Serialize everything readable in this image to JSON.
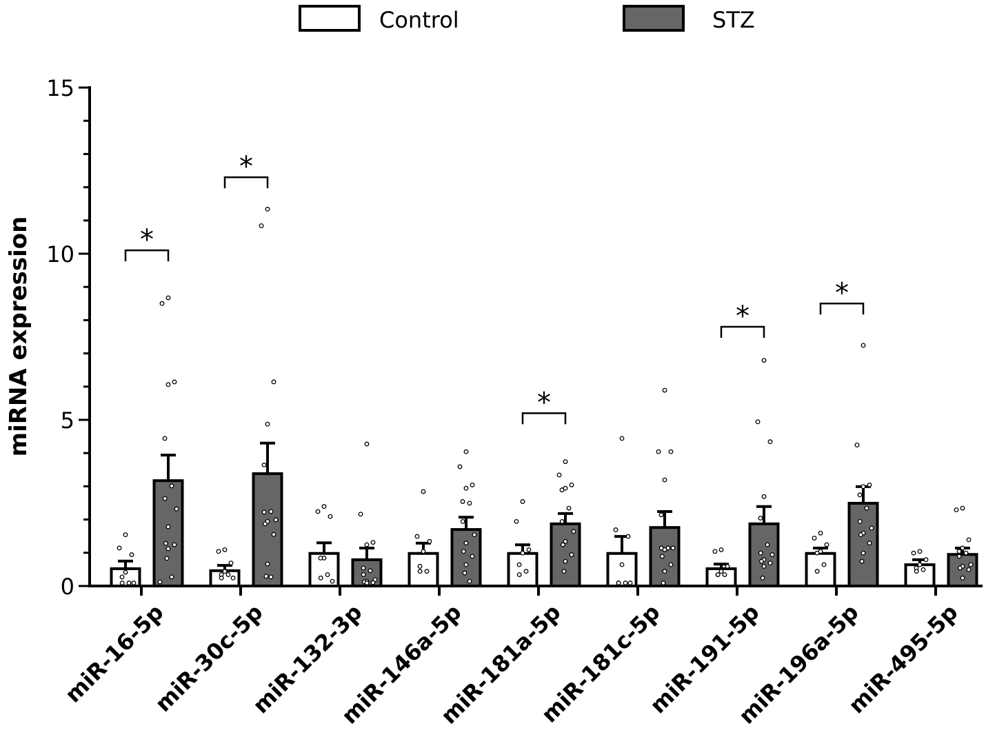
{
  "chart_data": {
    "type": "bar",
    "title": "",
    "xlabel": "",
    "ylabel": "miRNA expression",
    "ylim": [
      0,
      15
    ],
    "yticks": [
      0,
      5,
      10,
      15
    ],
    "ytick_labels": [
      "0",
      "5",
      "10",
      "15"
    ],
    "grid": false,
    "legend_position": "top",
    "categories": [
      "miR-16-5p",
      "miR-30c-5p",
      "miR-132-3p",
      "miR-146a-5p",
      "miR-181a-5p",
      "miR-181c-5p",
      "miR-191-5p",
      "miR-196a-5p",
      "miR-495-5p"
    ],
    "series": [
      {
        "name": "Control",
        "color": "#ffffff",
        "values": [
          0.52,
          0.46,
          0.98,
          0.98,
          0.98,
          0.98,
          0.52,
          0.98,
          0.64
        ],
        "error": [
          0.23,
          0.16,
          0.32,
          0.31,
          0.26,
          0.51,
          0.14,
          0.16,
          0.15
        ],
        "points": [
          [
            1.5,
            1.1,
            0.9,
            0.37,
            0.23,
            0.05,
            0.05,
            0.05
          ],
          [
            1.05,
            1.0,
            0.65,
            0.4,
            0.3,
            0.3,
            0.2,
            0.2
          ],
          [
            2.35,
            2.2,
            2.05,
            0.8,
            0.8,
            0.3,
            0.2,
            0.1
          ],
          [
            2.8,
            1.45,
            1.3,
            1.0,
            0.55,
            0.4,
            0.4
          ],
          [
            2.5,
            1.9,
            1.05,
            0.95,
            0.6,
            0.4,
            0.3
          ],
          [
            4.4,
            1.65,
            1.45,
            0.6,
            0.05,
            0.05,
            0.05,
            0.05
          ],
          [
            1.05,
            1.0,
            0.55,
            0.4,
            0.3,
            0.3,
            0.3
          ],
          [
            1.55,
            1.4,
            1.2,
            1.0,
            0.95,
            0.6,
            0.4
          ],
          [
            1.0,
            0.95,
            0.75,
            0.6,
            0.5,
            0.45,
            0.4
          ]
        ]
      },
      {
        "name": "STZ",
        "color": "#666666",
        "values": [
          3.17,
          3.38,
          0.79,
          1.7,
          1.87,
          1.76,
          1.87,
          2.49,
          0.95
        ],
        "error": [
          0.77,
          0.92,
          0.35,
          0.37,
          0.31,
          0.48,
          0.52,
          0.5,
          0.19
        ],
        "points": [
          [
            8.63,
            8.46,
            6.1,
            6.02,
            4.4,
            2.97,
            2.59,
            2.28,
            1.74,
            1.24,
            1.2,
            1.08,
            0.79,
            0.23,
            0.08
          ],
          [
            11.3,
            10.8,
            6.1,
            4.83,
            3.6,
            2.2,
            2.18,
            1.95,
            1.9,
            1.83,
            1.51,
            0.62,
            0.25,
            0.23
          ],
          [
            4.23,
            2.12,
            1.27,
            1.2,
            0.5,
            0.42,
            0.3,
            0.15,
            0.1,
            0.08,
            0.06,
            0.05
          ],
          [
            4.0,
            3.55,
            3.0,
            2.9,
            2.5,
            2.45,
            1.9,
            1.5,
            1.25,
            1.0,
            0.85,
            0.6,
            0.35,
            0.1
          ],
          [
            3.7,
            3.3,
            3.0,
            2.9,
            2.85,
            2.3,
            1.9,
            1.6,
            1.3,
            1.2,
            0.9,
            0.7,
            0.4
          ],
          [
            5.85,
            4.0,
            4.0,
            3.15,
            2.1,
            1.1,
            1.1,
            1.1,
            1.05,
            0.85,
            0.6,
            0.4,
            0.05
          ],
          [
            6.75,
            4.9,
            4.3,
            2.65,
            2.0,
            1.2,
            0.95,
            0.9,
            0.75,
            0.7,
            0.65,
            0.55,
            0.2
          ],
          [
            7.2,
            4.2,
            3.0,
            2.95,
            2.7,
            2.3,
            1.9,
            1.7,
            1.55,
            1.5,
            1.25,
            0.95,
            0.7
          ],
          [
            2.3,
            2.25,
            1.35,
            1.1,
            1.0,
            0.95,
            0.85,
            0.6,
            0.55,
            0.5,
            0.45,
            0.2
          ]
        ]
      }
    ],
    "significance": [
      {
        "category": "miR-16-5p",
        "label": "*",
        "level": 10.1
      },
      {
        "category": "miR-30c-5p",
        "label": "*",
        "level": 12.3
      },
      {
        "category": "miR-181a-5p",
        "label": "*",
        "level": 5.2
      },
      {
        "category": "miR-191-5p",
        "label": "*",
        "level": 7.8
      },
      {
        "category": "miR-196a-5p",
        "label": "*",
        "level": 8.5
      }
    ]
  }
}
